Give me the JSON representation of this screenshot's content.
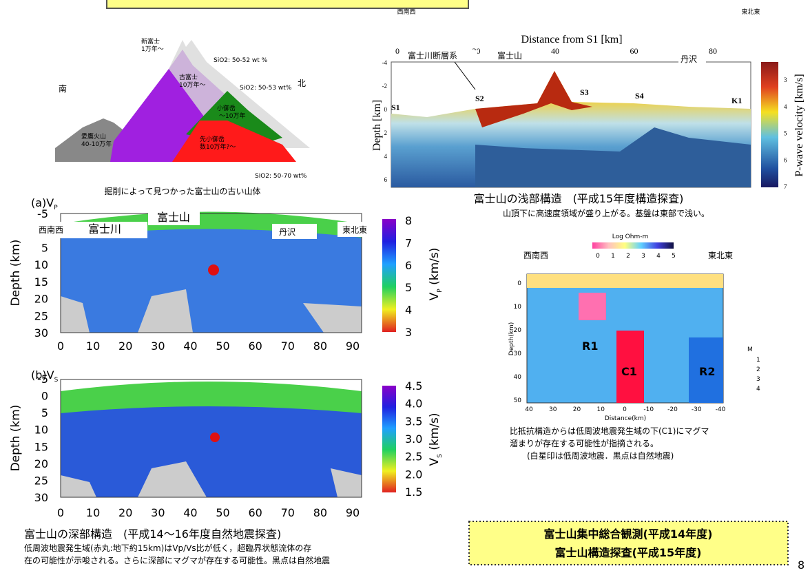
{
  "header": {
    "left": "西南西",
    "right": "東北東"
  },
  "excavation": {
    "labels": [
      "新富士",
      "1万年〜",
      "SiO2: 50-52 wt %",
      "古富士",
      "10万年〜",
      "SiO2: 50-53 wt%",
      "小御岳",
      "〜10万年",
      "南",
      "北",
      "愛鷹火山",
      "40-10万年",
      "先小御岳",
      "数10万年?〜",
      "SiO2: 50-70 wt%"
    ],
    "caption": "掘削によって見つかった富士山の古い山体"
  },
  "shallow": {
    "xlabel": "Distance from S1 [km]",
    "xticks": [
      0,
      20,
      40,
      60,
      80
    ],
    "ylabel": "Depth [km]",
    "yticks": [
      -4,
      -2,
      0,
      2,
      4,
      6
    ],
    "stations": [
      "S1",
      "S2",
      "S3",
      "S4",
      "K1"
    ],
    "labels": [
      "富士川断層系",
      "富士山",
      "丹沢"
    ],
    "colorbar_label": "P-wave velocity [km/s]",
    "colorbar_ticks": [
      3,
      4,
      5,
      6,
      7
    ],
    "caption": "富士山の浅部構造　(平成15年度構造探査)",
    "note": "山頂下に高速度領域が盛り上がる。基盤は東部で浅い。"
  },
  "deep": {
    "panel_a": "(a)V",
    "panel_a_sub": "P",
    "panel_b": "(b)V",
    "panel_b_sub": "S",
    "ylabel": "Depth (km)",
    "yticks": [
      -5,
      0,
      5,
      10,
      15,
      20,
      25,
      30
    ],
    "xticks": [
      0,
      10,
      20,
      30,
      40,
      50,
      60,
      70,
      80,
      90
    ],
    "labels": [
      "西南西",
      "富士川",
      "富士山",
      "丹沢",
      "東北東"
    ],
    "vp_label": "V",
    "vp_sub": "P",
    "vp_unit": " (km/s)",
    "vp_ticks": [
      8,
      7,
      6,
      5,
      4,
      3
    ],
    "vs_label": "V",
    "vs_sub": "S",
    "vs_unit": " (km/s)",
    "vs_ticks": [
      "4.5",
      "4.0",
      "3.5",
      "3.0",
      "2.5",
      "2.0",
      "1.5"
    ],
    "caption": "富士山の深部構造　(平成14～16年度自然地震探査)",
    "note1": "低周波地震発生域(赤丸:地下約15km)はVp/Vs比が低く，超臨界状態流体の存",
    "note2": "在の可能性が示唆される。さらに深部にマグマが存在する可能性。黒点は自然地震"
  },
  "resistivity": {
    "colorbar_label": "Log Ohm-m",
    "colorbar_ticks": [
      0,
      1,
      2,
      3,
      4,
      5
    ],
    "left": "西南西",
    "right": "東北東",
    "ylabel": "Depth(km)",
    "yticks": [
      0,
      10,
      20,
      30,
      40,
      50
    ],
    "xlabel": "Distance(km)",
    "xticks": [
      40,
      30,
      20,
      10,
      0,
      -10,
      -20,
      -30,
      -40
    ],
    "regions": [
      "R1",
      "C1",
      "R2"
    ],
    "legend_title": "M",
    "legend": [
      1,
      2,
      3,
      4
    ],
    "caption1": "比抵抗構造からは低周波地震発生域の下(C1)にマグマ",
    "caption2": "溜まりが存在する可能性が指摘される。",
    "caption3": "(白星印は低周波地震．黒点は自然地震)"
  },
  "box": {
    "line1": "富士山集中総合観測(平成14年度)",
    "line2": "富士山構造探査(平成15年度)"
  },
  "page_number": "8"
}
